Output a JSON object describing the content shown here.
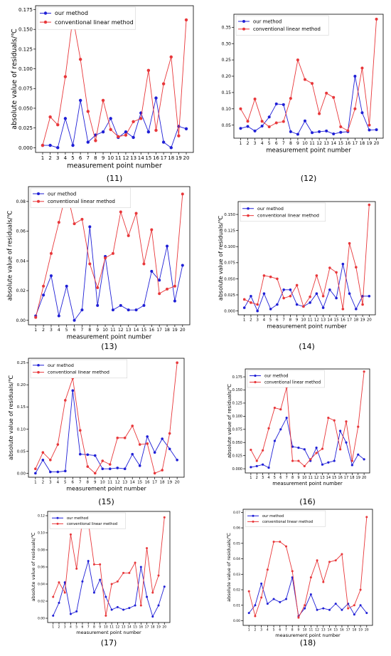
{
  "colors": {
    "our_method": "#1f1fd6",
    "linear_method": "#e8373a",
    "axis": "#000000"
  },
  "chart_data": [
    {
      "type": "line",
      "caption": "(11)",
      "xlabel": "measurement point number",
      "ylabel": "absolute value of residuals/℃",
      "x": [
        1,
        2,
        3,
        4,
        5,
        6,
        7,
        8,
        9,
        10,
        11,
        12,
        13,
        14,
        15,
        16,
        17,
        18,
        19,
        20
      ],
      "ylim": [
        -0.006,
        0.18
      ],
      "yticks": [
        "0.000",
        "0.025",
        "0.050",
        "0.075",
        "0.100",
        "0.125",
        "0.150",
        "0.175"
      ],
      "legend": "top-left",
      "series": [
        {
          "name": "our method",
          "values": [
            0.003,
            0.003,
            0.0,
            0.037,
            0.003,
            0.06,
            0.007,
            0.016,
            0.02,
            0.037,
            0.013,
            0.02,
            0.013,
            0.044,
            0.02,
            0.063,
            0.007,
            0.0,
            0.027,
            0.024
          ]
        },
        {
          "name": "conventional linear method",
          "values": [
            0.003,
            0.039,
            0.029,
            0.09,
            0.165,
            0.112,
            0.046,
            0.009,
            0.06,
            0.023,
            0.014,
            0.016,
            0.033,
            0.037,
            0.098,
            0.022,
            0.081,
            0.115,
            0.015,
            0.162
          ]
        }
      ]
    },
    {
      "type": "line",
      "caption": "(12)",
      "xlabel": "measurement point number",
      "ylabel": "",
      "x": [
        1,
        2,
        3,
        4,
        5,
        6,
        7,
        8,
        9,
        10,
        11,
        12,
        13,
        14,
        15,
        16,
        17,
        18,
        19,
        20
      ],
      "ylim": [
        0.01,
        0.39
      ],
      "yticks": [
        "0.05",
        "0.10",
        "0.15",
        "0.20",
        "0.25",
        "0.30",
        "0.35"
      ],
      "legend": "top-left",
      "series": [
        {
          "name": "our method",
          "values": [
            0.04,
            0.046,
            0.032,
            0.047,
            0.075,
            0.115,
            0.113,
            0.03,
            0.022,
            0.063,
            0.027,
            0.03,
            0.032,
            0.023,
            0.028,
            0.03,
            0.2,
            0.088,
            0.035,
            0.036
          ]
        },
        {
          "name": "conventional linear method",
          "values": [
            0.1,
            0.062,
            0.13,
            0.062,
            0.045,
            0.057,
            0.061,
            0.132,
            0.25,
            0.19,
            0.178,
            0.085,
            0.148,
            0.135,
            0.045,
            0.033,
            0.1,
            0.225,
            0.05,
            0.375
          ]
        }
      ]
    },
    {
      "type": "line",
      "caption": "(13)",
      "xlabel": "measurement point number",
      "ylabel": "absolute value of residuals/℃",
      "x": [
        1,
        2,
        3,
        4,
        5,
        6,
        7,
        8,
        9,
        10,
        11,
        12,
        13,
        14,
        15,
        16,
        17,
        18,
        19,
        20
      ],
      "ylim": [
        -0.003,
        0.09
      ],
      "yticks": [
        "0.00",
        "0.02",
        "0.04",
        "0.06",
        "0.08"
      ],
      "legend": "top-left",
      "series": [
        {
          "name": "our method",
          "values": [
            0.003,
            0.017,
            0.03,
            0.003,
            0.023,
            0.0,
            0.007,
            0.063,
            0.01,
            0.043,
            0.007,
            0.01,
            0.007,
            0.007,
            0.01,
            0.033,
            0.027,
            0.05,
            0.013,
            0.037
          ]
        },
        {
          "name": "conventional linear method",
          "values": [
            0.002,
            0.023,
            0.045,
            0.066,
            0.087,
            0.065,
            0.068,
            0.038,
            0.022,
            0.042,
            0.045,
            0.073,
            0.057,
            0.072,
            0.038,
            0.061,
            0.018,
            0.021,
            0.023,
            0.085
          ]
        }
      ]
    },
    {
      "type": "line",
      "caption": "(14)",
      "xlabel": "measurement point number",
      "ylabel": "absolute value of residuals/℃",
      "x": [
        1,
        2,
        3,
        4,
        5,
        6,
        7,
        8,
        9,
        10,
        11,
        12,
        13,
        14,
        15,
        16,
        17,
        18,
        19,
        20
      ],
      "ylim": [
        -0.006,
        0.17
      ],
      "yticks": [
        "0.000",
        "0.025",
        "0.050",
        "0.075",
        "0.100",
        "0.125",
        "0.150"
      ],
      "legend": "top-left",
      "series": [
        {
          "name": "our method",
          "values": [
            0.005,
            0.023,
            0.0,
            0.027,
            0.003,
            0.01,
            0.033,
            0.033,
            0.01,
            0.007,
            0.013,
            0.027,
            0.005,
            0.033,
            0.02,
            0.073,
            0.027,
            0.003,
            0.023,
            0.023
          ]
        },
        {
          "name": "conventional linear method",
          "values": [
            0.018,
            0.013,
            0.01,
            0.055,
            0.053,
            0.05,
            0.02,
            0.023,
            0.04,
            0.007,
            0.022,
            0.055,
            0.023,
            0.067,
            0.06,
            0.003,
            0.105,
            0.068,
            0.01,
            0.165
          ]
        }
      ]
    },
    {
      "type": "line",
      "caption": "(15)",
      "xlabel": "measurement point number",
      "ylabel": "absolute value of residuals/℃",
      "x": [
        1,
        2,
        3,
        4,
        5,
        6,
        7,
        8,
        9,
        10,
        11,
        12,
        13,
        14,
        15,
        16,
        17,
        18,
        19,
        20
      ],
      "ylim": [
        -0.009,
        0.26
      ],
      "yticks": [
        "0.00",
        "0.05",
        "0.10",
        "0.15",
        "0.20",
        "0.25"
      ],
      "legend": "top-left",
      "series": [
        {
          "name": "our method",
          "values": [
            0.0,
            0.03,
            0.003,
            0.003,
            0.005,
            0.187,
            0.043,
            0.042,
            0.04,
            0.01,
            0.01,
            0.012,
            0.01,
            0.043,
            0.017,
            0.083,
            0.047,
            0.078,
            0.055,
            0.03
          ]
        },
        {
          "name": "conventional linear method",
          "values": [
            0.01,
            0.047,
            0.03,
            0.065,
            0.165,
            0.215,
            0.097,
            0.015,
            0.0,
            0.028,
            0.02,
            0.08,
            0.08,
            0.107,
            0.065,
            0.067,
            0.0,
            0.007,
            0.09,
            0.25
          ]
        }
      ]
    },
    {
      "type": "line",
      "caption": "(16)",
      "xlabel": "measurement point number",
      "ylabel": "absolute value of residuals/℃",
      "x": [
        1,
        2,
        3,
        4,
        5,
        6,
        7,
        8,
        9,
        10,
        11,
        12,
        13,
        14,
        15,
        16,
        17,
        18,
        19,
        20
      ],
      "ylim": [
        -0.008,
        0.19
      ],
      "yticks": [
        "0.000",
        "0.025",
        "0.050",
        "0.075",
        "0.100",
        "0.125",
        "0.150",
        "0.175"
      ],
      "legend": "top-left",
      "series": [
        {
          "name": "our method",
          "values": [
            0.003,
            0.005,
            0.008,
            0.002,
            0.053,
            0.075,
            0.097,
            0.042,
            0.04,
            0.037,
            0.015,
            0.04,
            0.008,
            0.012,
            0.015,
            0.072,
            0.05,
            0.007,
            0.027,
            0.018
          ]
        },
        {
          "name": "conventional linear method",
          "values": [
            0.036,
            0.015,
            0.035,
            0.077,
            0.116,
            0.113,
            0.155,
            0.015,
            0.015,
            0.005,
            0.018,
            0.03,
            0.038,
            0.097,
            0.092,
            0.037,
            0.09,
            0.015,
            0.08,
            0.185
          ]
        }
      ]
    },
    {
      "type": "line",
      "caption": "(17)",
      "xlabel": "measurement point number",
      "ylabel": "absolute value of residuals/℃",
      "x": [
        1,
        2,
        3,
        4,
        5,
        6,
        7,
        8,
        9,
        10,
        11,
        12,
        13,
        14,
        15,
        16,
        17,
        18,
        19,
        20
      ],
      "ylim": [
        -0.005,
        0.125
      ],
      "yticks": [
        "0.00",
        "0.02",
        "0.04",
        "0.06",
        "0.08",
        "0.10",
        "0.12"
      ],
      "legend": "top-left",
      "series": [
        {
          "name": "our method",
          "values": [
            0.003,
            0.018,
            0.042,
            0.005,
            0.008,
            0.043,
            0.067,
            0.03,
            0.045,
            0.025,
            0.01,
            0.013,
            0.01,
            0.012,
            0.015,
            0.06,
            0.025,
            0.002,
            0.015,
            0.037
          ]
        },
        {
          "name": "conventional linear method",
          "values": [
            0.025,
            0.042,
            0.03,
            0.098,
            0.058,
            0.115,
            0.113,
            0.063,
            0.063,
            0.003,
            0.04,
            0.043,
            0.053,
            0.053,
            0.065,
            0.015,
            0.082,
            0.03,
            0.05,
            0.118
          ]
        }
      ]
    },
    {
      "type": "line",
      "caption": "(18)",
      "xlabel": "measurement point number",
      "ylabel": "absolute value of residuals/℃",
      "x": [
        1,
        2,
        3,
        4,
        5,
        6,
        7,
        8,
        9,
        10,
        11,
        12,
        13,
        14,
        15,
        16,
        17,
        18,
        19,
        20
      ],
      "ylim": [
        -0.003,
        0.072
      ],
      "yticks": [
        "0.00",
        "0.01",
        "0.02",
        "0.03",
        "0.04",
        "0.05",
        "0.06",
        "0.07"
      ],
      "legend": "top-left",
      "series": [
        {
          "name": "our method",
          "values": [
            0.005,
            0.01,
            0.024,
            0.011,
            0.014,
            0.012,
            0.014,
            0.028,
            0.003,
            0.008,
            0.017,
            0.007,
            0.008,
            0.007,
            0.011,
            0.007,
            0.011,
            0.004,
            0.01,
            0.005
          ]
        },
        {
          "name": "conventional linear method",
          "values": [
            0.019,
            0.003,
            0.015,
            0.033,
            0.051,
            0.051,
            0.048,
            0.032,
            0.002,
            0.01,
            0.028,
            0.039,
            0.025,
            0.038,
            0.039,
            0.043,
            0.008,
            0.01,
            0.02,
            0.067
          ]
        }
      ]
    }
  ]
}
